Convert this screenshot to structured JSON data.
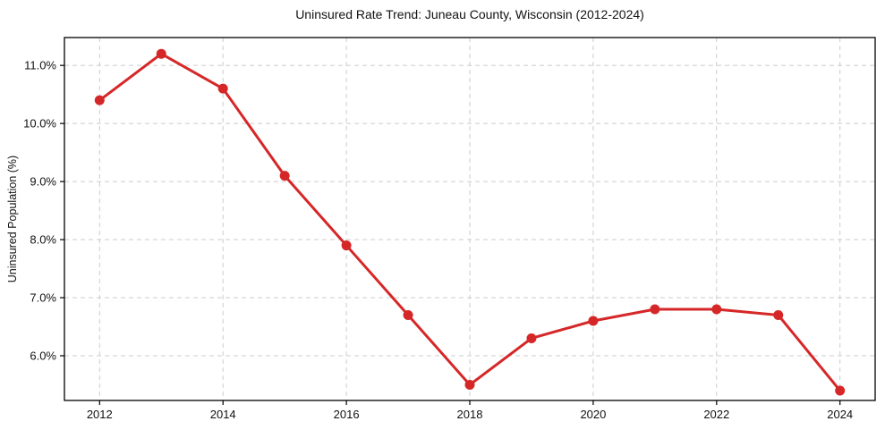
{
  "chart_data": {
    "type": "line",
    "title": "Uninsured Rate Trend: Juneau County, Wisconsin (2012-2024)",
    "xlabel": "",
    "ylabel": "Uninsured Population (%)",
    "x": [
      2012,
      2013,
      2014,
      2015,
      2016,
      2017,
      2018,
      2019,
      2020,
      2021,
      2022,
      2023,
      2024
    ],
    "values": [
      10.4,
      11.2,
      10.6,
      9.1,
      7.9,
      6.7,
      5.5,
      6.3,
      6.6,
      6.8,
      6.8,
      6.7,
      5.4
    ],
    "series_color": "#d62728",
    "marker": "circle",
    "grid": true,
    "legend": false,
    "xlim": [
      2011.43,
      2024.57
    ],
    "ylim": [
      5.23,
      11.48
    ],
    "xticks": [
      {
        "value": 2012,
        "label": "2012"
      },
      {
        "value": 2014,
        "label": "2014"
      },
      {
        "value": 2016,
        "label": "2016"
      },
      {
        "value": 2018,
        "label": "2018"
      },
      {
        "value": 2020,
        "label": "2020"
      },
      {
        "value": 2022,
        "label": "2022"
      },
      {
        "value": 2024,
        "label": "2024"
      }
    ],
    "yticks": [
      {
        "value": 6.0,
        "label": "6.0%"
      },
      {
        "value": 7.0,
        "label": "7.0%"
      },
      {
        "value": 8.0,
        "label": "8.0%"
      },
      {
        "value": 9.0,
        "label": "9.0%"
      },
      {
        "value": 10.0,
        "label": "10.0%"
      },
      {
        "value": 11.0,
        "label": "11.0%"
      }
    ]
  }
}
